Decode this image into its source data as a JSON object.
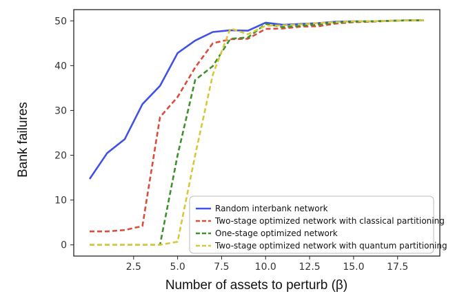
{
  "chart_data": {
    "type": "line",
    "xlabel": "Number of assets to perturb (β)",
    "ylabel": "Bank failures",
    "xlim": [
      -0.9,
      19.9
    ],
    "ylim": [
      -2.5,
      52.5
    ],
    "x_ticks": [
      2.5,
      5.0,
      7.5,
      10.0,
      12.5,
      15.0,
      17.5
    ],
    "x_tick_labels": [
      "2.5",
      "5.0",
      "7.5",
      "10.0",
      "12.5",
      "15.0",
      "17.5"
    ],
    "y_ticks": [
      0,
      10,
      20,
      30,
      40,
      50
    ],
    "y_tick_labels": [
      "0",
      "10",
      "20",
      "30",
      "40",
      "50"
    ],
    "grid": false,
    "legend_position": "lower-right",
    "x": [
      0,
      1,
      2,
      3,
      4,
      5,
      6,
      7,
      8,
      9,
      10,
      11,
      12,
      13,
      14,
      15,
      16,
      17,
      18,
      19
    ],
    "series": [
      {
        "name": "Random interbank network",
        "color": "#3f51e6",
        "style": "solid",
        "values": [
          14.7,
          20.5,
          23.6,
          31.4,
          35.5,
          42.8,
          45.6,
          47.5,
          47.9,
          47.8,
          49.6,
          49.1,
          49.3,
          49.5,
          49.8,
          49.9,
          49.9,
          50.0,
          50.1,
          50.1
        ]
      },
      {
        "name": "Two-stage optimized network with classical partitioning",
        "color": "#dc4b3c",
        "style": "dashed",
        "values": [
          3.0,
          3.0,
          3.3,
          4.2,
          28.5,
          33.0,
          39.6,
          45.0,
          45.9,
          46.0,
          48.2,
          48.3,
          48.7,
          48.8,
          49.4,
          49.7,
          49.8,
          50.0,
          50.1,
          50.1
        ]
      },
      {
        "name": "One-stage optimized network",
        "color": "#3f8f2c",
        "style": "dashed",
        "values": [
          0.0,
          0.0,
          0.0,
          0.0,
          0.0,
          20.0,
          36.8,
          39.9,
          46.0,
          46.3,
          49.3,
          48.6,
          48.9,
          49.2,
          49.6,
          49.8,
          49.9,
          50.0,
          50.1,
          50.1
        ]
      },
      {
        "name": "Two-stage optimized network with quantum partitioning",
        "color": "#d6c83a",
        "style": "dashed",
        "values": [
          0.0,
          0.0,
          0.0,
          0.0,
          0.0,
          0.7,
          20.0,
          38.0,
          48.3,
          47.0,
          48.9,
          49.0,
          49.2,
          49.5,
          49.7,
          49.9,
          49.9,
          50.0,
          50.1,
          50.1
        ]
      }
    ]
  }
}
